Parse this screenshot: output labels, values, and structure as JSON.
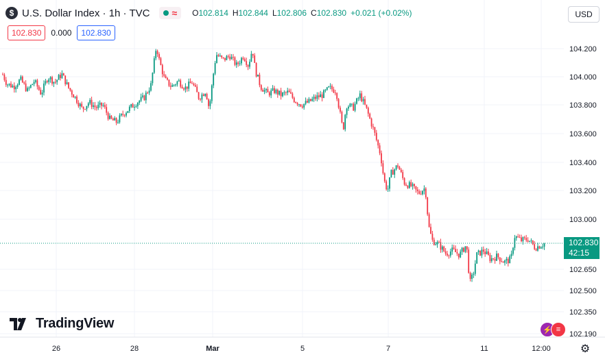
{
  "header": {
    "symbol_letter": "$",
    "title": "U.S. Dollar Index · 1h · TVC",
    "wave_symbol": "≈",
    "open_label": "O",
    "open_value": "102.814",
    "high_label": "H",
    "high_value": "102.844",
    "low_label": "L",
    "low_value": "102.806",
    "close_label": "C",
    "close_value": "102.830",
    "change": "+0.021 (+0.02%)"
  },
  "trade_boxes": {
    "sell": "102.830",
    "spread": "0.000",
    "buy": "102.830"
  },
  "currency_button": "USD",
  "price_tag": {
    "price": "102.830",
    "countdown": "42:15"
  },
  "logo_text": "TradingView",
  "colors": {
    "up": "#089981",
    "down": "#f23645",
    "grid": "#f0f3fa",
    "text": "#131722",
    "axis_text": "#131722"
  },
  "chart_data": {
    "type": "candlestick",
    "interval": "1h",
    "yaxis_ticks": [
      104.2,
      104.0,
      103.8,
      103.6,
      103.4,
      103.2,
      103.0,
      102.83,
      102.65,
      102.5,
      102.35,
      102.19
    ],
    "yaxis_tick_labels": [
      "104.200",
      "104.000",
      "103.800",
      "103.600",
      "103.400",
      "103.200",
      "103.000",
      "102.830",
      "102.650",
      "102.500",
      "102.350",
      "102.190"
    ],
    "xaxis_tick_labels": [
      "26",
      "28",
      "Mar",
      "5",
      "7",
      "11",
      "12:00"
    ],
    "last_price": 102.83,
    "close_path": [
      [
        0,
        104.06
      ],
      [
        10,
        103.95
      ],
      [
        20,
        103.93
      ],
      [
        30,
        103.98
      ],
      [
        40,
        103.9
      ],
      [
        50,
        103.97
      ],
      [
        60,
        103.88
      ],
      [
        70,
        104.0
      ],
      [
        80,
        103.96
      ],
      [
        90,
        104.02
      ],
      [
        100,
        103.92
      ],
      [
        110,
        103.85
      ],
      [
        120,
        103.77
      ],
      [
        130,
        103.82
      ],
      [
        140,
        103.78
      ],
      [
        150,
        103.8
      ],
      [
        160,
        103.7
      ],
      [
        170,
        103.68
      ],
      [
        180,
        103.74
      ],
      [
        190,
        103.78
      ],
      [
        200,
        103.82
      ],
      [
        210,
        103.85
      ],
      [
        220,
        103.94
      ],
      [
        228,
        104.22
      ],
      [
        232,
        104.12
      ],
      [
        240,
        103.98
      ],
      [
        250,
        103.93
      ],
      [
        260,
        103.97
      ],
      [
        270,
        103.92
      ],
      [
        280,
        103.96
      ],
      [
        290,
        103.85
      ],
      [
        300,
        103.9
      ],
      [
        305,
        103.77
      ],
      [
        310,
        103.98
      ],
      [
        315,
        104.16
      ],
      [
        325,
        104.12
      ],
      [
        335,
        104.15
      ],
      [
        345,
        104.08
      ],
      [
        355,
        104.15
      ],
      [
        362,
        104.08
      ],
      [
        368,
        104.2
      ],
      [
        372,
        104.05
      ],
      [
        380,
        103.93
      ],
      [
        390,
        103.88
      ],
      [
        400,
        103.9
      ],
      [
        410,
        103.87
      ],
      [
        420,
        103.89
      ],
      [
        430,
        103.83
      ],
      [
        440,
        103.8
      ],
      [
        450,
        103.82
      ],
      [
        460,
        103.85
      ],
      [
        470,
        103.87
      ],
      [
        480,
        103.92
      ],
      [
        490,
        103.9
      ],
      [
        500,
        103.62
      ],
      [
        505,
        103.8
      ],
      [
        515,
        103.78
      ],
      [
        525,
        103.87
      ],
      [
        535,
        103.76
      ],
      [
        545,
        103.62
      ],
      [
        555,
        103.45
      ],
      [
        560,
        103.27
      ],
      [
        565,
        103.2
      ],
      [
        570,
        103.32
      ],
      [
        580,
        103.38
      ],
      [
        590,
        103.25
      ],
      [
        600,
        103.23
      ],
      [
        610,
        103.18
      ],
      [
        620,
        103.22
      ],
      [
        625,
        102.95
      ],
      [
        630,
        102.85
      ],
      [
        640,
        102.82
      ],
      [
        650,
        102.76
      ],
      [
        660,
        102.78
      ],
      [
        670,
        102.75
      ],
      [
        680,
        102.82
      ],
      [
        685,
        102.55
      ],
      [
        690,
        102.62
      ],
      [
        695,
        102.75
      ],
      [
        705,
        102.78
      ],
      [
        715,
        102.72
      ],
      [
        725,
        102.74
      ],
      [
        735,
        102.7
      ],
      [
        745,
        102.72
      ],
      [
        750,
        102.88
      ],
      [
        760,
        102.85
      ],
      [
        770,
        102.86
      ],
      [
        780,
        102.8
      ],
      [
        790,
        102.82
      ],
      [
        795,
        102.83
      ]
    ]
  }
}
